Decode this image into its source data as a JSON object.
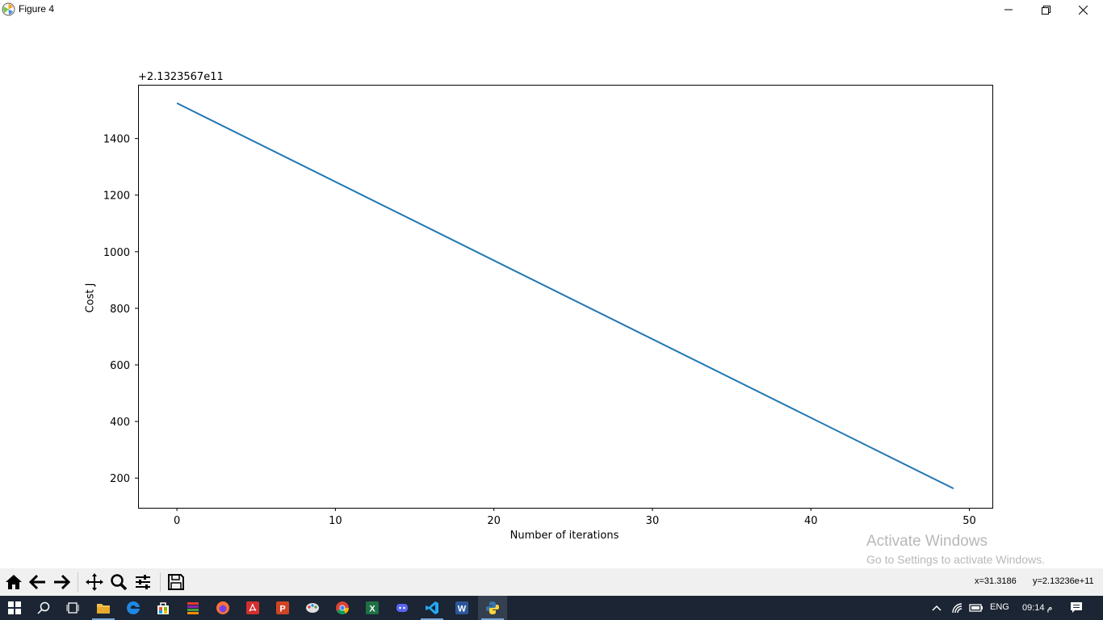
{
  "window": {
    "title": "Figure 4"
  },
  "figure": {
    "offset_text": "+2.1323567e11",
    "watermark_line1": "Activate Windows",
    "watermark_line2": "Go to Settings to activate Windows."
  },
  "chart_data": {
    "type": "line",
    "title": "",
    "xlabel": "Number of iterations",
    "ylabel": "Cost J",
    "y_offset_label": "+2.1323567e11",
    "xlim": [
      -2.45,
      51.45
    ],
    "ylim": [
      95,
      1590
    ],
    "xticks": [
      0,
      10,
      20,
      30,
      40,
      50
    ],
    "yticks": [
      200,
      400,
      600,
      800,
      1000,
      1200,
      1400
    ],
    "grid": false,
    "series": [
      {
        "x": [
          0,
          49
        ],
        "y": [
          1525,
          163
        ],
        "color": "#1f77b4"
      }
    ]
  },
  "toolbar": {
    "buttons": [
      "home-icon",
      "back-icon",
      "forward-icon",
      "pan-icon",
      "zoom-icon",
      "configure-icon",
      "save-icon"
    ],
    "coord_x": "x=31.3186",
    "coord_y": "y=2.13236e+11"
  },
  "taskbar": {
    "apps": [
      "start",
      "search",
      "task-view",
      "file-explorer",
      "edge",
      "store",
      "app-stack",
      "firefox",
      "acrobat",
      "powerpoint",
      "paint",
      "chrome",
      "excel",
      "discord",
      "vscode",
      "word",
      "python"
    ],
    "language": "ENG",
    "clock": "09:14 م"
  }
}
